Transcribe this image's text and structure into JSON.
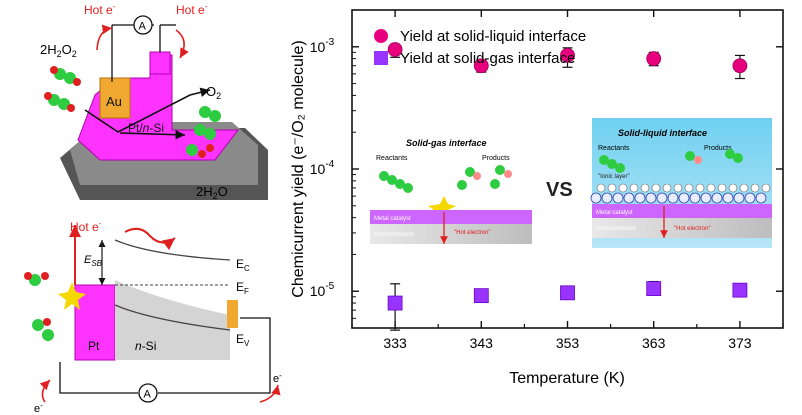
{
  "left_panel": {
    "top": {
      "hot_left": "Hot e",
      "hot_right": "Hot e",
      "ammeter": "A",
      "h2o2": "2H",
      "o2": "O",
      "au": "Au",
      "ptsi": "Pt/",
      "ptsi_n": "n",
      "ptsi_si": "-Si",
      "h2o": "2H",
      "h2o_o": "O"
    },
    "band": {
      "hot": "Hot e",
      "esb": "E",
      "esb_sub": "SB",
      "ec": "E",
      "ec_sub": "C",
      "ef": "E",
      "ef_sub": "F",
      "ev": "E",
      "ev_sub": "V",
      "pt": "Pt",
      "nsi_n": "n",
      "nsi_si": "-Si",
      "ammeter": "A",
      "e_left": "e",
      "e_right": "e"
    }
  },
  "inset": {
    "gas_title": "Solid-gas interface",
    "gas_reactants": "Reactants",
    "gas_products": "Products",
    "gas_metal": "Metal catalyst",
    "gas_semi": "Semiconductor",
    "gas_hot": "\"Hot electron\"",
    "vs": "VS",
    "liq_title": "Solid-liquid interface",
    "liq_reactants": "Reactants",
    "liq_products": "Products",
    "liq_ionic": "\"Ionic layer\"",
    "liq_metal": "Metal catalyst",
    "liq_semi": "Semiconductor",
    "liq_hot": "\"Hot electron\""
  },
  "colors": {
    "liquid": "#e6007e",
    "gas": "#9933ff",
    "pt": "#ff33ff",
    "au": "#f0a830",
    "arrow": "#e02020"
  },
  "chart_data": {
    "type": "scatter",
    "xlabel": "Temperature (K)",
    "ylabel": "Chemicurrent yield (e⁻/O₂ molecule)",
    "x": [
      333,
      343,
      353,
      363,
      373
    ],
    "xticks": [
      "333",
      "343",
      "353",
      "363",
      "373"
    ],
    "xlim": [
      328,
      378
    ],
    "ylim": [
      5e-06,
      0.002
    ],
    "log_y": true,
    "grid": false,
    "legend_position": "top",
    "series": [
      {
        "name": "Yield at solid-liquid interface",
        "marker": "circle",
        "color": "#e6007e",
        "values": [
          0.00095,
          0.0007,
          0.00085,
          0.0008,
          0.0007
        ],
        "err_low": [
          0.00082,
          0.00062,
          0.00068,
          0.0007,
          0.00055
        ],
        "err_high": [
          0.00105,
          0.00078,
          0.00098,
          0.0009,
          0.00085
        ]
      },
      {
        "name": "Yield at solid-gas interface",
        "marker": "square",
        "color": "#9933ff",
        "values": [
          8e-06,
          9.2e-06,
          9.7e-06,
          1.05e-05,
          1.02e-05
        ],
        "err_low": [
          4.8e-06,
          8.2e-06,
          8.8e-06,
          9.3e-06,
          9.3e-06
        ],
        "err_high": [
          1.15e-05,
          1.03e-05,
          1.05e-05,
          1.2e-05,
          1.12e-05
        ]
      }
    ],
    "yticks": [
      {
        "base": "10",
        "exp": "-5",
        "value": 1e-05
      },
      {
        "base": "10",
        "exp": "-4",
        "value": 0.0001
      },
      {
        "base": "10",
        "exp": "-3",
        "value": 0.001
      }
    ]
  }
}
